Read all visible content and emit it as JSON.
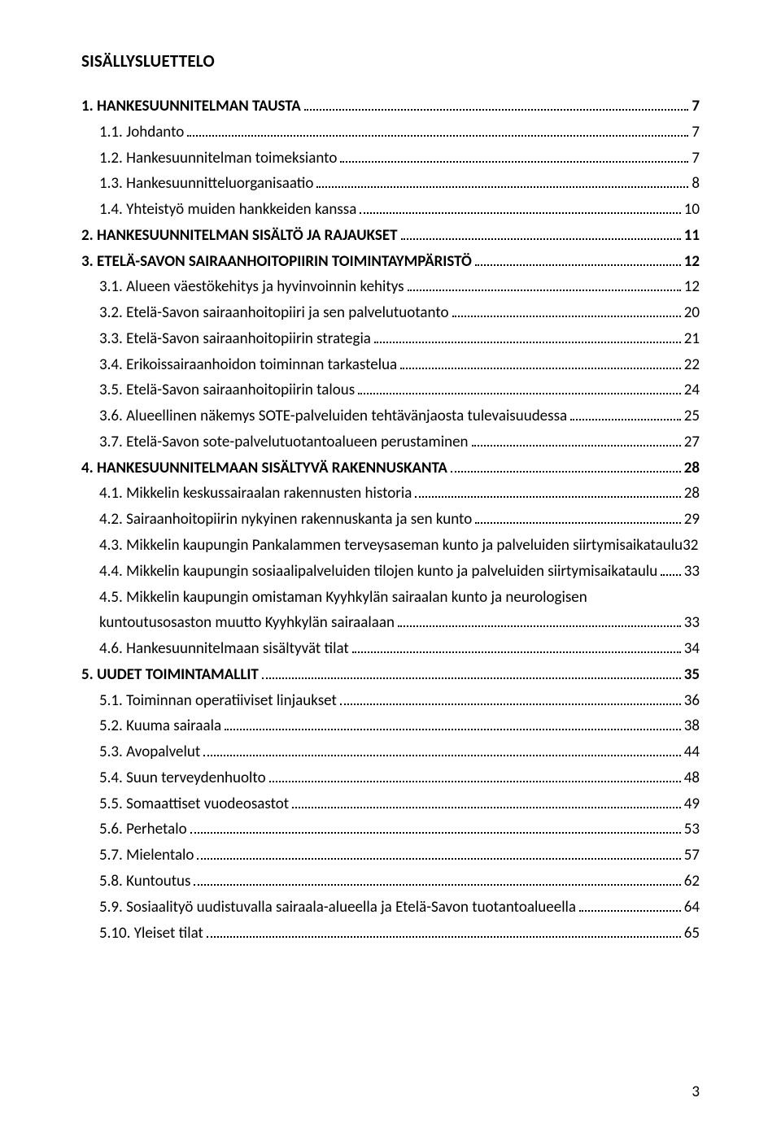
{
  "heading": "SISÄLLYSLUETTELO",
  "pageNumber": "3",
  "toc": [
    {
      "level": 1,
      "label": "1.   HANKESUUNNITELMAN TAUSTA",
      "page": "7"
    },
    {
      "level": 2,
      "label": "1.1. Johdanto",
      "page": "7"
    },
    {
      "level": 2,
      "label": "1.2. Hankesuunnitelman toimeksianto",
      "page": "7"
    },
    {
      "level": 2,
      "label": "1.3. Hankesuunnitteluorganisaatio",
      "page": "8"
    },
    {
      "level": 2,
      "label": "1.4. Yhteistyö muiden hankkeiden kanssa",
      "page": "10"
    },
    {
      "level": 1,
      "label": "2. HANKESUUNNITELMAN SISÄLTÖ JA RAJAUKSET",
      "page": "11"
    },
    {
      "level": 1,
      "label": "3. ETELÄ-SAVON SAIRAANHOITOPIIRIN TOIMINTAYMPÄRISTÖ",
      "page": "12"
    },
    {
      "level": 2,
      "label": "3.1. Alueen väestökehitys ja hyvinvoinnin kehitys",
      "page": "12"
    },
    {
      "level": 2,
      "label": "3.2. Etelä-Savon sairaanhoitopiiri ja sen palvelutuotanto",
      "page": "20"
    },
    {
      "level": 2,
      "label": "3.3. Etelä-Savon sairaanhoitopiirin strategia",
      "page": "21"
    },
    {
      "level": 2,
      "label": "3.4. Erikoissairaanhoidon toiminnan tarkastelua",
      "page": "22"
    },
    {
      "level": 2,
      "label": "3.5. Etelä-Savon sairaanhoitopiirin talous",
      "page": "24"
    },
    {
      "level": 2,
      "label": "3.6. Alueellinen näkemys SOTE-palveluiden tehtävänjaosta tulevaisuudessa",
      "page": "25"
    },
    {
      "level": 2,
      "label": "3.7. Etelä-Savon sote-palvelutuotantoalueen perustaminen",
      "page": "27"
    },
    {
      "level": 1,
      "label": "4. HANKESUUNNITELMAAN SISÄLTYVÄ RAKENNUSKANTA",
      "page": "28"
    },
    {
      "level": 2,
      "label": "4.1.  Mikkelin keskussairaalan rakennusten historia",
      "page": "28"
    },
    {
      "level": 2,
      "label": "4.2. Sairaanhoitopiirin nykyinen rakennuskanta ja sen kunto",
      "page": "29"
    },
    {
      "level": 2,
      "label": "4.3. Mikkelin kaupungin Pankalammen terveysaseman kunto ja palveluiden siirtymisaikataulu",
      "page": "32",
      "nodots": true
    },
    {
      "level": 2,
      "label": "4.4. Mikkelin kaupungin sosiaalipalveluiden tilojen kunto ja palveluiden siirtymisaikataulu",
      "page": "33"
    },
    {
      "level": 2,
      "label": "4.5. Mikkelin kaupungin omistaman Kyyhkylän sairaalan kunto ja neurologisen",
      "continuation": "kuntoutusosaston muutto Kyyhkylän sairaalaan",
      "page": "33"
    },
    {
      "level": 2,
      "label": "4.6. Hankesuunnitelmaan sisältyvät tilat",
      "page": "34"
    },
    {
      "level": 1,
      "label": "5. UUDET TOIMINTAMALLIT",
      "page": "35"
    },
    {
      "level": 2,
      "label": "5.1. Toiminnan operatiiviset linjaukset",
      "page": "36"
    },
    {
      "level": 2,
      "label": "5.2. Kuuma sairaala",
      "page": "38"
    },
    {
      "level": 2,
      "label": "5.3. Avopalvelut",
      "page": "44"
    },
    {
      "level": 2,
      "label": "5.4. Suun terveydenhuolto",
      "page": "48"
    },
    {
      "level": 2,
      "label": "5.5. Somaattiset vuodeosastot",
      "page": "49"
    },
    {
      "level": 2,
      "label": "5.6. Perhetalo",
      "page": "53"
    },
    {
      "level": 2,
      "label": "5.7. Mielentalo",
      "page": "57"
    },
    {
      "level": 2,
      "label": "5.8. Kuntoutus",
      "page": "62"
    },
    {
      "level": 2,
      "label": "5.9. Sosiaalityö uudistuvalla sairaala-alueella ja Etelä-Savon tuotantoalueella",
      "page": "64"
    },
    {
      "level": 2,
      "label": "5.10. Yleiset tilat",
      "page": "65"
    }
  ]
}
